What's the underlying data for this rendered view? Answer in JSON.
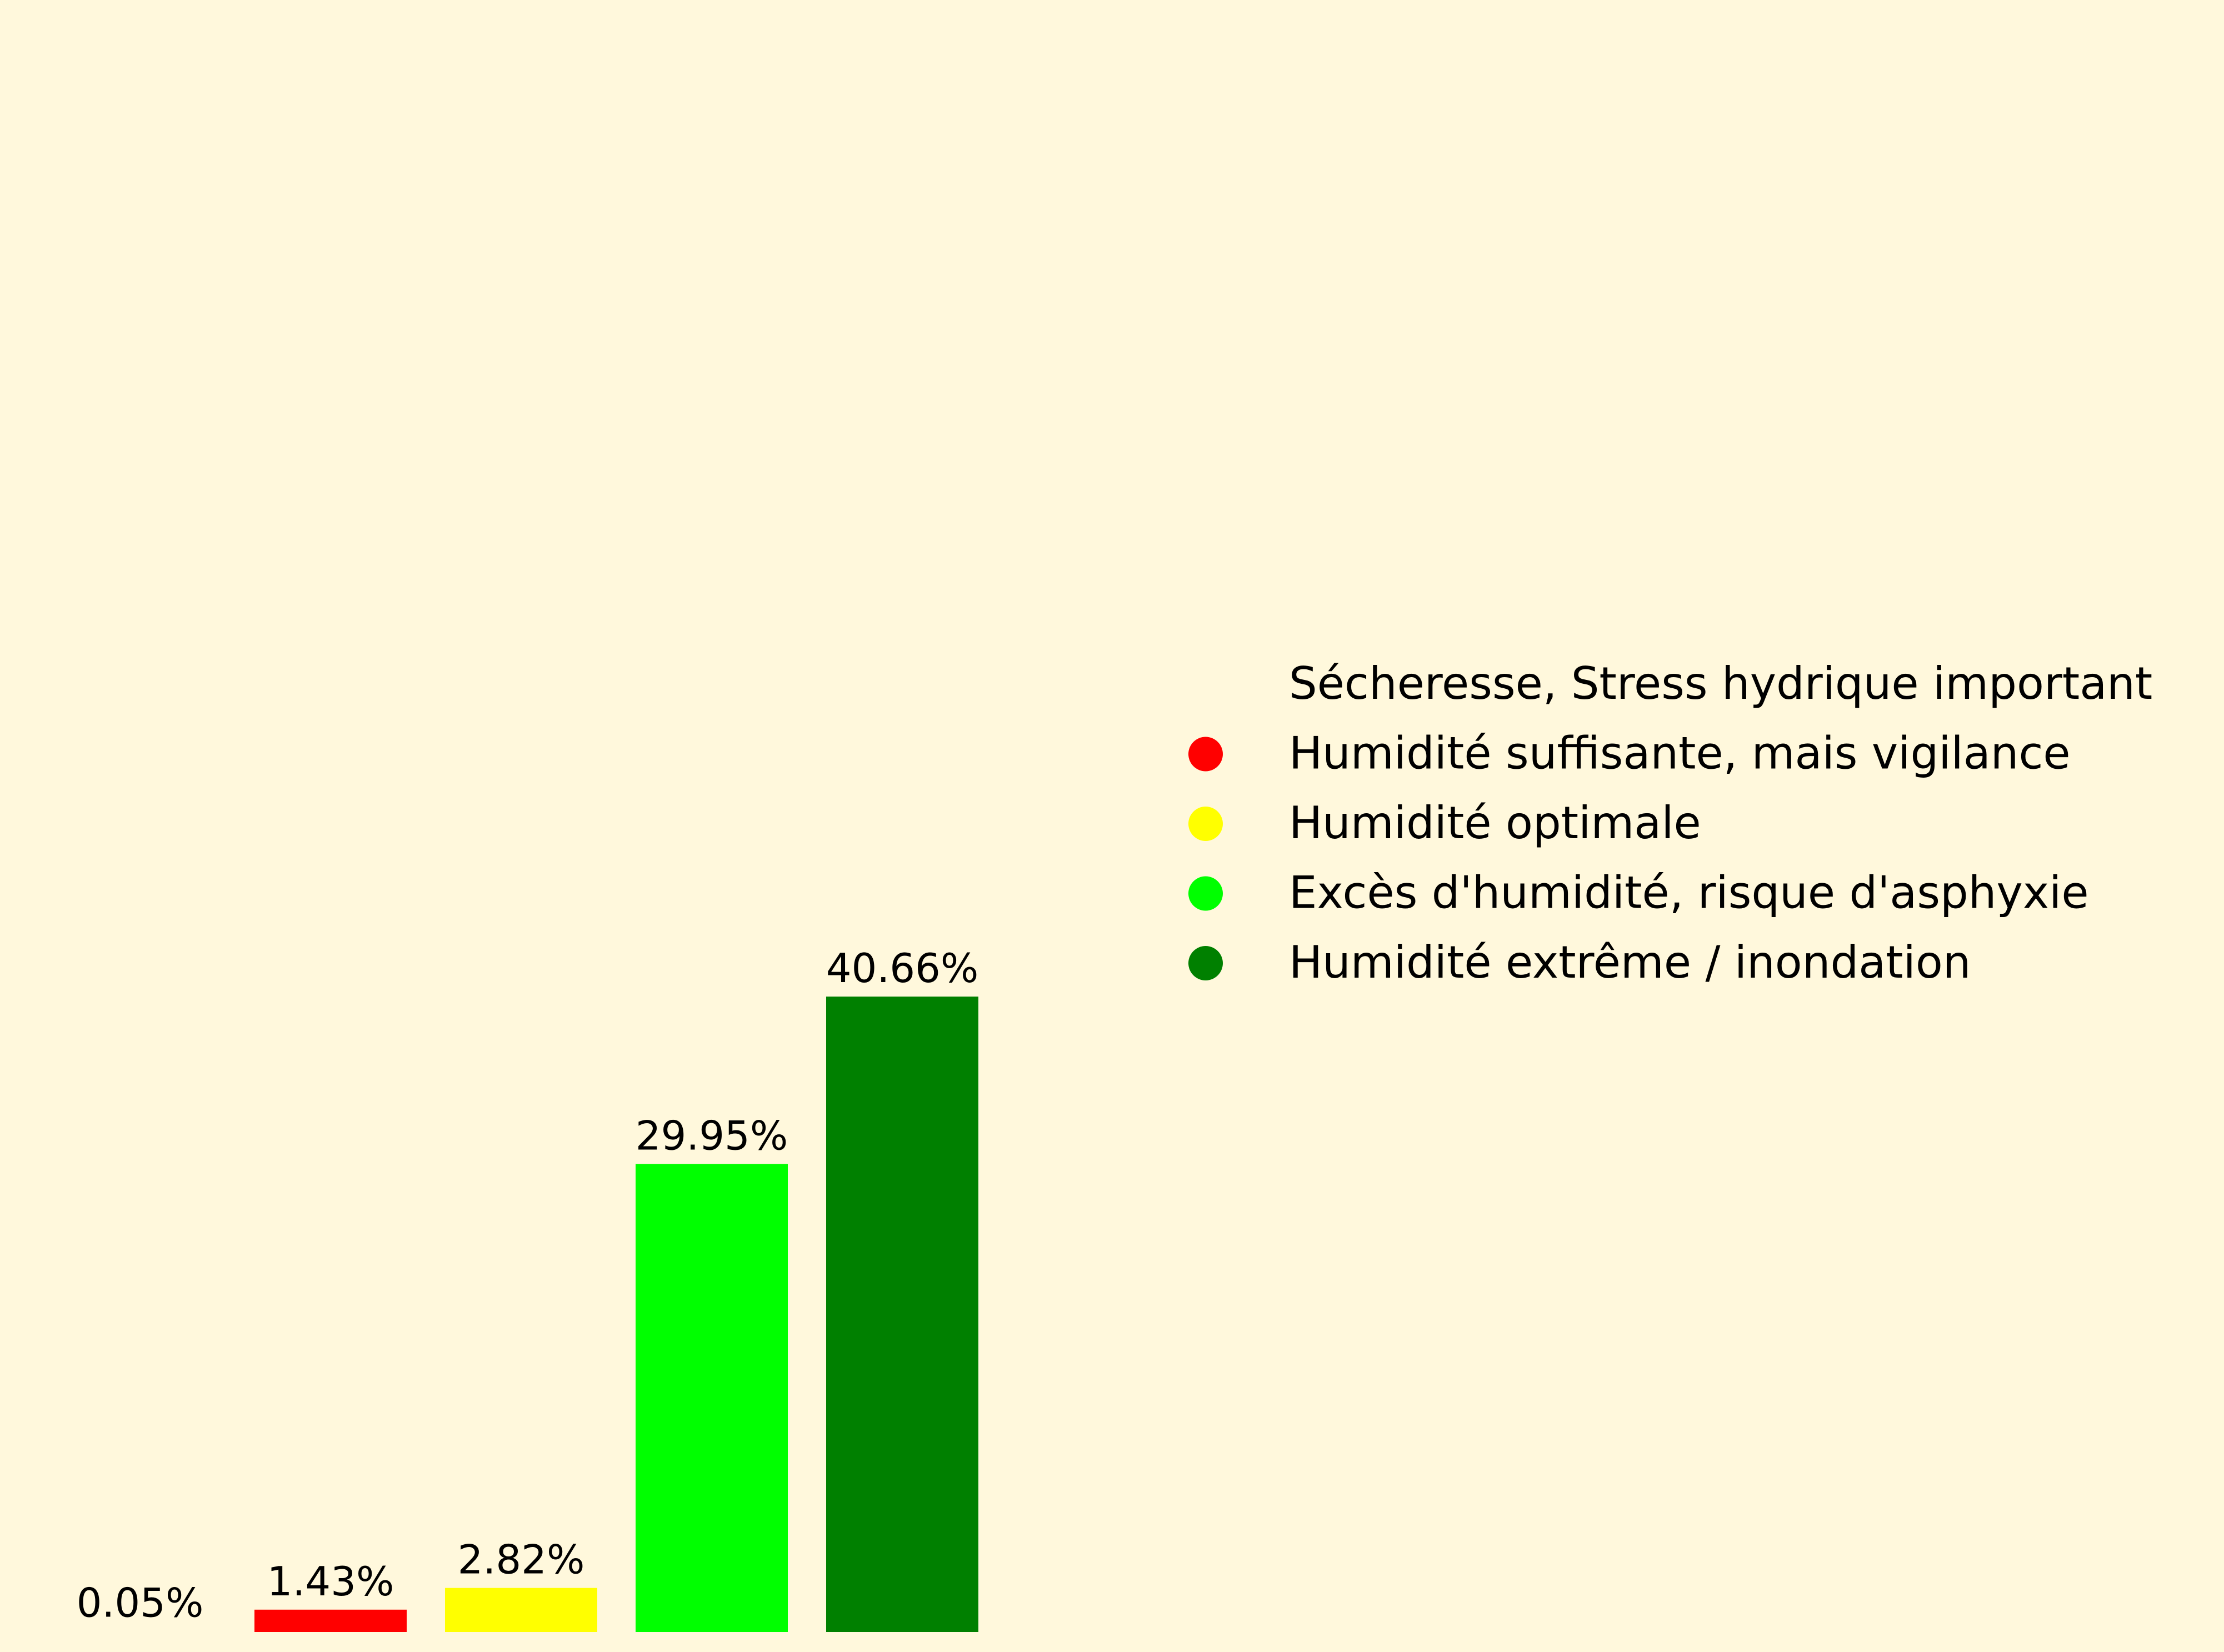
{
  "background": "#fff8dc",
  "chart_data": {
    "type": "bar",
    "title": "",
    "xlabel": "",
    "ylabel": "",
    "grid": false,
    "legend_position": "right",
    "ylim": [
      0,
      45
    ],
    "categories": [
      "Sécheresse, Stress hydrique important",
      "Humidité suffisante, mais vigilance",
      "Humidité optimale",
      "Excès d'humidité, risque d'asphyxie",
      "Humidité extrême / inondation"
    ],
    "values": [
      0.05,
      1.43,
      2.82,
      29.95,
      40.66
    ],
    "value_labels": [
      "0.05%",
      "1.43%",
      "2.82%",
      "29.95%",
      "40.66%"
    ],
    "colors": [
      "#fff8dc",
      "#ff0000",
      "#ffff00",
      "#00ff00",
      "#008000"
    ]
  }
}
